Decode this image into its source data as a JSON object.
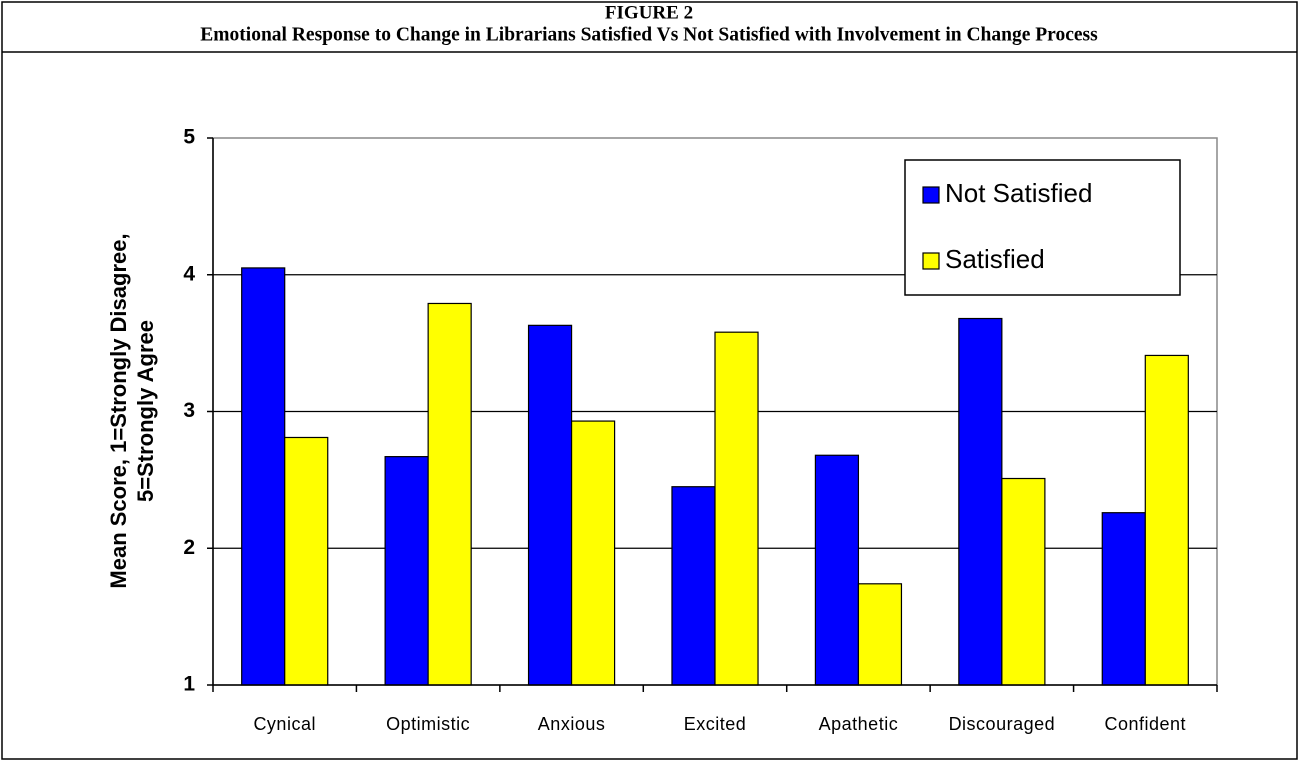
{
  "chart_data": {
    "type": "bar",
    "title": "FIGURE 2",
    "subtitle": "Emotional Response to Change in Librarians Satisfied Vs Not Satisfied with Involvement in Change Process",
    "y_label": [
      "Mean Score, 1=Strongly Disagree,",
      "5=Strongly Agree"
    ],
    "categories": [
      "Cynical",
      "Optimistic",
      "Anxious",
      "Excited",
      "Apathetic",
      "Discouraged",
      "Confident"
    ],
    "series": [
      {
        "name": "Not Satisfied",
        "color": "#0000ff",
        "values": [
          4.05,
          2.67,
          3.63,
          2.45,
          2.68,
          3.68,
          2.26
        ]
      },
      {
        "name": "Satisfied",
        "color": "#ffff00",
        "values": [
          2.81,
          3.79,
          2.93,
          3.58,
          1.74,
          2.51,
          3.41
        ]
      }
    ],
    "ylim": [
      1,
      5
    ],
    "yticks": [
      1,
      2,
      3,
      4,
      5
    ],
    "grid": true,
    "legend": "upper right"
  }
}
